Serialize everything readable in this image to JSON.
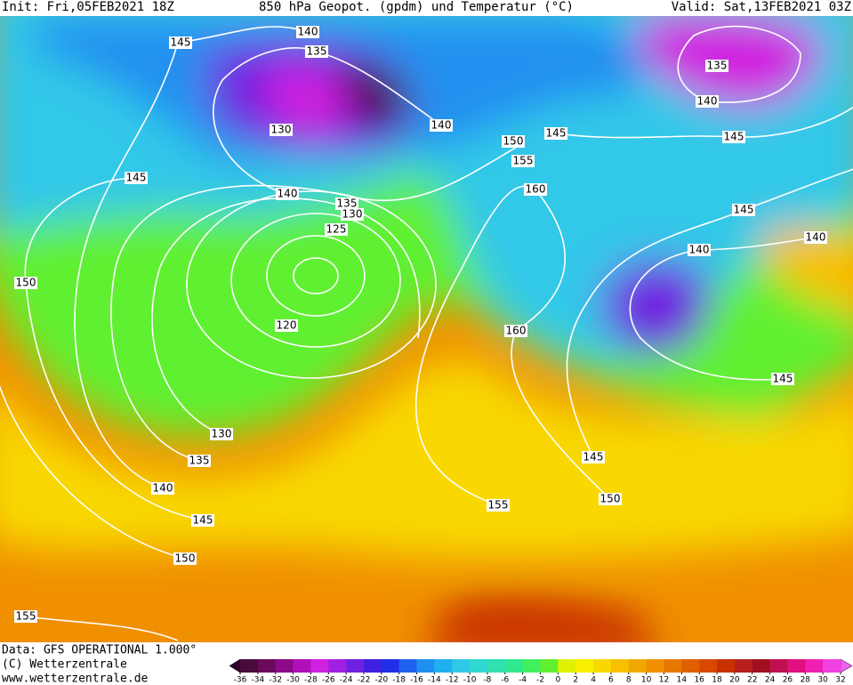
{
  "header": {
    "init": "Init: Fri,05FEB2021 18Z",
    "title": "850 hPa Geopot. (gpdm) und Temperatur (°C)",
    "valid": "Valid: Sat,13FEB2021 03Z"
  },
  "footer": {
    "data": "Data: GFS OPERATIONAL 1.000°",
    "copyright": "(C) Wetterzentrale",
    "url": "www.wetterzentrale.de"
  },
  "colorbar": {
    "ticks": [
      -36,
      -34,
      -32,
      -30,
      -28,
      -26,
      -24,
      -22,
      -20,
      -18,
      -16,
      -14,
      -12,
      -10,
      -8,
      -6,
      -4,
      -2,
      0,
      2,
      4,
      6,
      8,
      10,
      12,
      14,
      16,
      18,
      20,
      22,
      24,
      26,
      28,
      30,
      32
    ],
    "colors": [
      "#4a0a3a",
      "#6a0a5a",
      "#8a0a8a",
      "#b010b8",
      "#d020e0",
      "#a020e0",
      "#7020e0",
      "#4020e0",
      "#2030e8",
      "#2060f0",
      "#2090f0",
      "#20b0f0",
      "#30c8e8",
      "#30d8d0",
      "#30e0b0",
      "#30e890",
      "#40f060",
      "#60f030",
      "#e0f000",
      "#f8f000",
      "#f8d800",
      "#f8c000",
      "#f0a800",
      "#f09000",
      "#e87800",
      "#e06000",
      "#d84800",
      "#c83000",
      "#b82020",
      "#a01020",
      "#c01050",
      "#e01080",
      "#f020b0",
      "#f040e0"
    ],
    "under_color": "#300028",
    "over_color": "#f060f0"
  },
  "contour_labels": [
    "145",
    "140",
    "135",
    "130",
    "140",
    "150",
    "145",
    "155",
    "160",
    "140",
    "135",
    "130",
    "125",
    "120",
    "145",
    "150",
    "160",
    "135",
    "140",
    "145",
    "145",
    "140",
    "140",
    "145",
    "145",
    "150",
    "155",
    "130",
    "135",
    "140",
    "145",
    "150",
    "155"
  ]
}
